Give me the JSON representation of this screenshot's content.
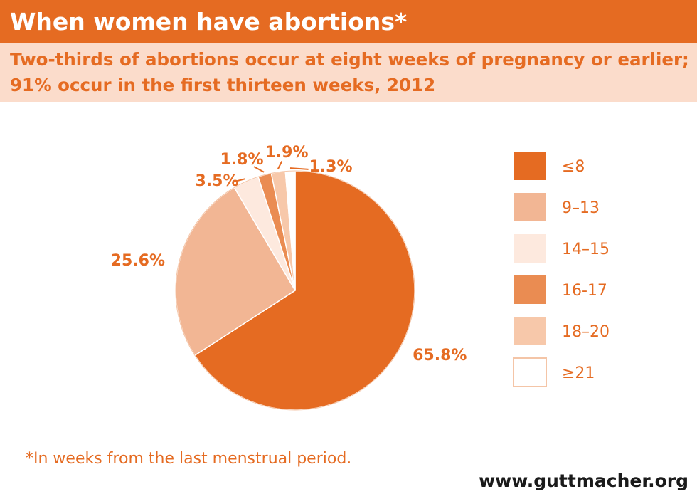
{
  "title": "When women have abortions*",
  "subtitle": {
    "line1": "Two-thirds of abortions occur at eight weeks of pregnancy or earlier;",
    "line2": "91% occur in the first thirteen weeks, 2012"
  },
  "chart_data": {
    "type": "pie",
    "title": "When women have abortions*",
    "categories": [
      "≤8",
      "9–13",
      "14–15",
      "16-17",
      "18–20",
      "≥21"
    ],
    "values": [
      65.8,
      25.6,
      3.5,
      1.8,
      1.9,
      1.3
    ],
    "labels": [
      "65.8%",
      "25.6%",
      "3.5%",
      "1.8%",
      "1.9%",
      "1.3%"
    ],
    "colors": [
      "#e56b22",
      "#f2b694",
      "#fde9de",
      "#ea8c52",
      "#f7c8aa",
      "#ffffff"
    ],
    "legend": "right"
  },
  "footnote": "*In weeks from the last menstrual period.",
  "source": "www.guttmacher.org",
  "colors": {
    "accent": "#e56b22",
    "subtitle_bg": "#fbdccb",
    "white": "#ffffff"
  }
}
